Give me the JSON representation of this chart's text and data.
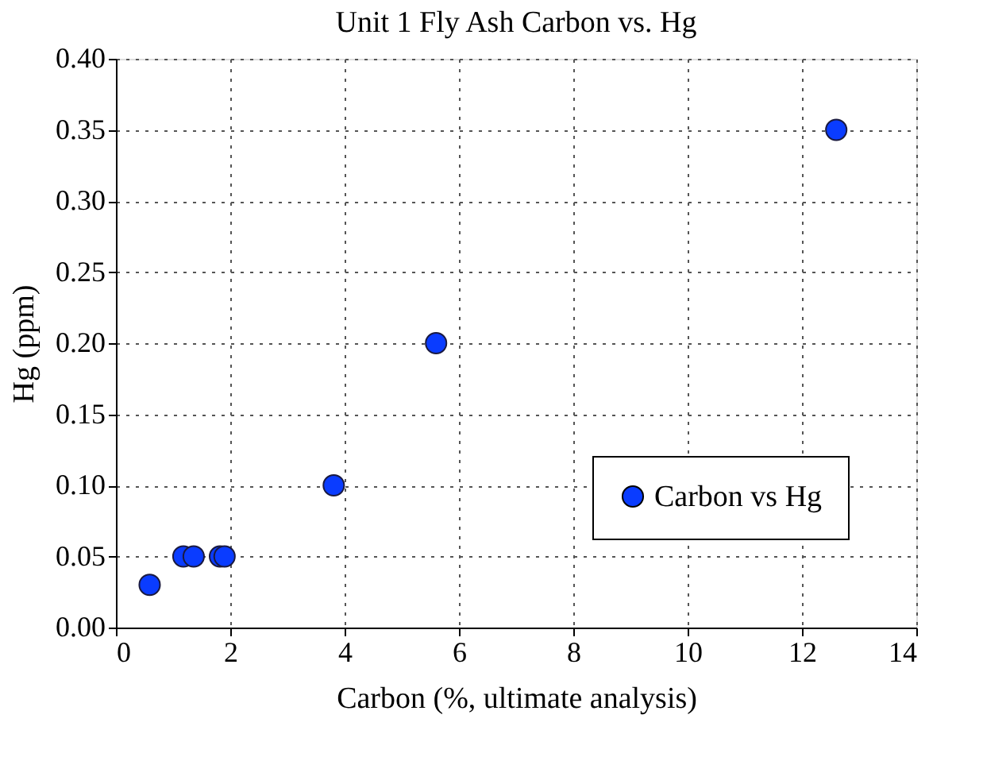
{
  "chart_data": {
    "type": "scatter",
    "title": "Unit 1 Fly Ash Carbon vs. Hg",
    "xlabel": "Carbon (%, ultimate analysis)",
    "ylabel": "Hg (ppm)",
    "x": [
      0.59,
      1.18,
      1.36,
      1.82,
      1.9,
      3.81,
      5.6,
      12.6
    ],
    "series": [
      {
        "name": "Carbon vs Hg",
        "color": "#0a3cff",
        "values": [
          0.03,
          0.05,
          0.05,
          0.05,
          0.05,
          0.1,
          0.2,
          0.35
        ]
      }
    ],
    "xlim": [
      0,
      14
    ],
    "xticks": [
      0,
      2,
      4,
      6,
      8,
      10,
      12,
      14
    ],
    "ylim": [
      0,
      0.4
    ],
    "yticks": [
      {
        "value": 0,
        "label": "0.00"
      },
      {
        "value": 0.05,
        "label": "0.05"
      },
      {
        "value": 0.1,
        "label": "0.10"
      },
      {
        "value": 0.15,
        "label": "0.15"
      },
      {
        "value": 0.2,
        "label": "0.20"
      },
      {
        "value": 0.25,
        "label": "0.25"
      },
      {
        "value": 0.3,
        "label": "0.30"
      },
      {
        "value": 0.35,
        "label": "0.35"
      },
      {
        "value": 0.4,
        "label": "0.40"
      }
    ],
    "grid": true,
    "legend": "bottom right",
    "marker": "circle"
  }
}
